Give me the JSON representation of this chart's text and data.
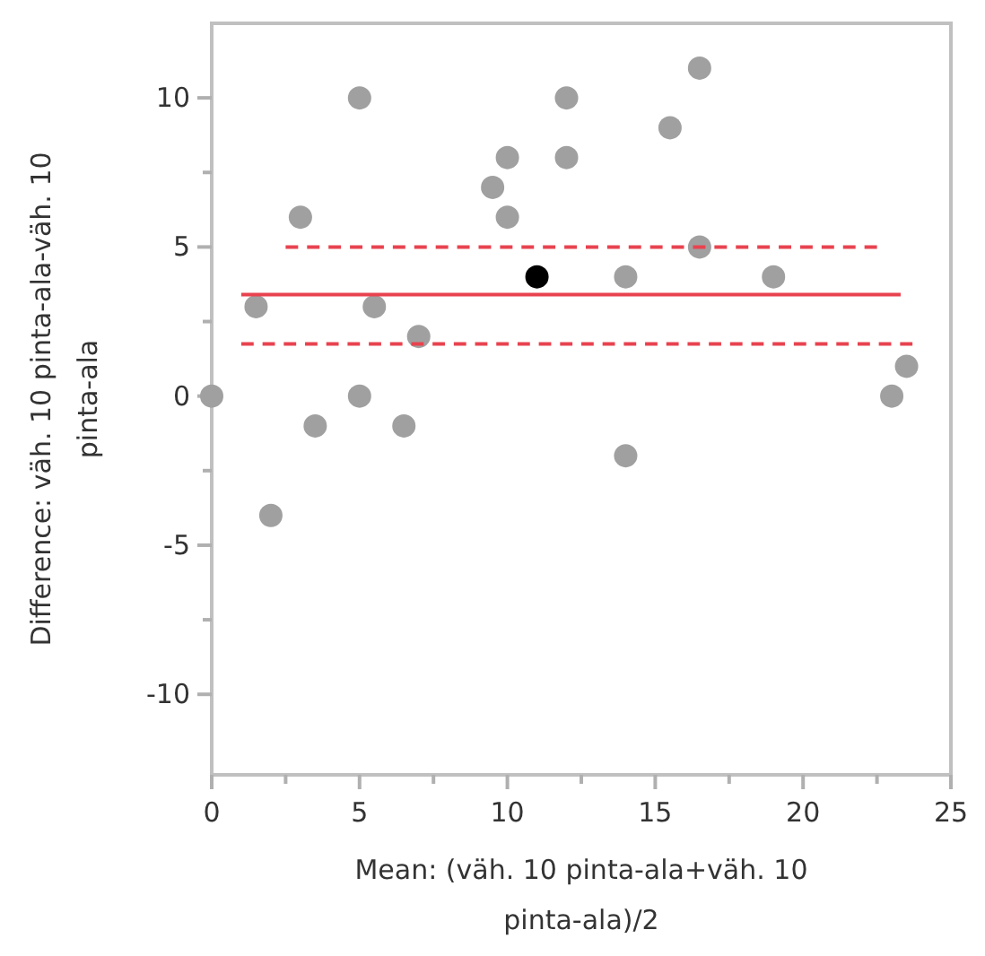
{
  "chart_data": {
    "type": "scatter",
    "xlabel": "Mean: (väh. 10 pinta-ala+väh. 10 pinta-ala)/2",
    "ylabel": "Difference: väh. 10 pinta-ala-väh. 10 pinta-ala",
    "xlim": [
      0,
      25
    ],
    "ylim": [
      -12.7,
      12.5
    ],
    "xticks": [
      0,
      {
        "value": 2.5,
        "label": null
      },
      5,
      {
        "value": 7.5,
        "label": null
      },
      10,
      {
        "value": 12.5,
        "label": null
      },
      15,
      {
        "value": 17.5,
        "label": null
      },
      20,
      {
        "value": 22.5,
        "label": null
      },
      25
    ],
    "yticks": [
      -10,
      {
        "value": -7.5,
        "label": null
      },
      -5,
      {
        "value": -2.5,
        "label": null
      },
      0,
      {
        "value": 2.5,
        "label": null
      },
      5,
      {
        "value": 7.5,
        "label": null
      },
      10
    ],
    "grid": false,
    "marker": "circle",
    "series": [
      {
        "color": "#a0a0a0",
        "x": [
          0,
          1.5,
          2,
          3,
          3.5,
          5,
          5,
          5.5,
          6.5,
          7,
          9.5,
          10,
          10,
          12,
          12,
          14,
          14,
          15.5,
          16.5,
          16.5,
          19,
          23,
          23.5
        ],
        "values": [
          0,
          3,
          -4,
          6,
          -1,
          10,
          0,
          3,
          -1,
          2,
          7,
          8,
          6,
          10,
          8,
          4,
          -2,
          9,
          11,
          5,
          4,
          0,
          1
        ]
      },
      {
        "type": "line",
        "color": "#e8434f",
        "line_style": "dashed",
        "marker": "none",
        "x": [
          2.5,
          22.5
        ],
        "values": [
          5,
          5
        ]
      },
      {
        "type": "line",
        "color": "#e8434f",
        "line_style": "solid",
        "marker": "none",
        "x": [
          1,
          23.3
        ],
        "values": [
          3.4,
          3.4
        ]
      },
      {
        "type": "line",
        "color": "#e8434f",
        "line_style": "dashed",
        "marker": "none",
        "x": [
          1,
          23.7
        ],
        "values": [
          1.75,
          1.75
        ]
      },
      {
        "color": "#000000",
        "x": [
          11
        ],
        "values": [
          4
        ]
      }
    ]
  }
}
